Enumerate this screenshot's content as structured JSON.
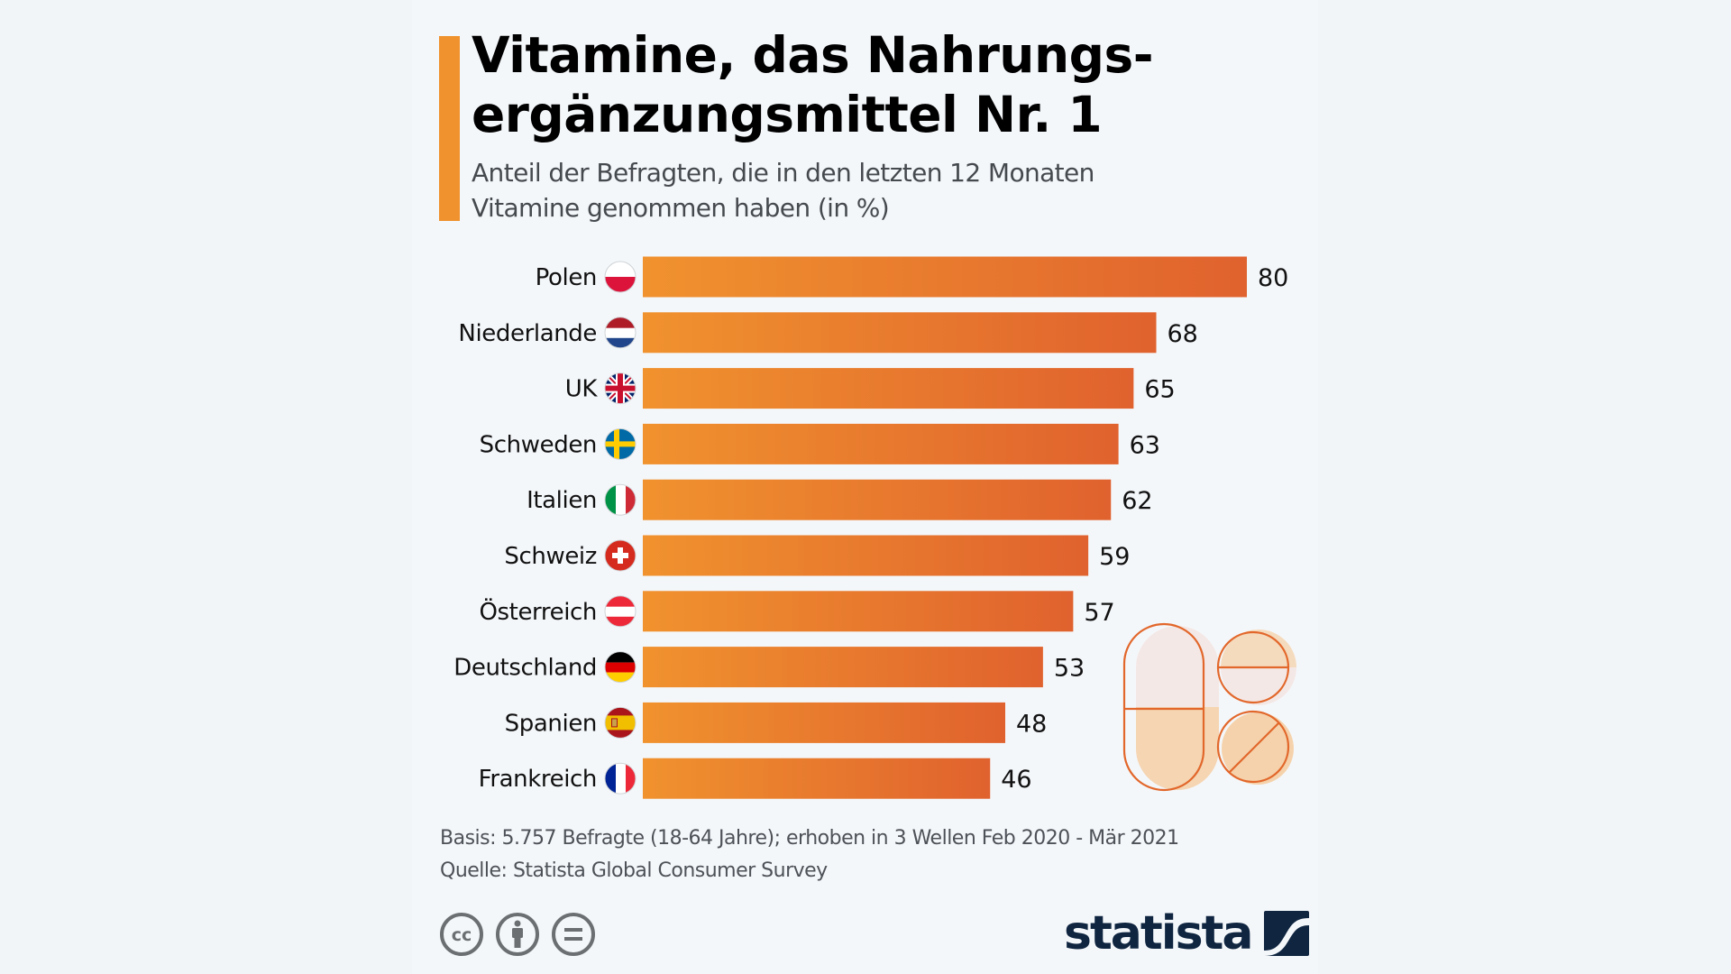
{
  "header": {
    "title_lines": [
      "Vitamine, das Nahrungs-",
      "ergänzungsmittel Nr. 1"
    ],
    "subtitle_lines": [
      "Anteil der Befragten, die in den letzten 12 Monaten",
      "Vitamine genommen haben (in %)"
    ]
  },
  "colors": {
    "accent": "#f0922e",
    "bar_start": "#f0922e",
    "bar_end": "#e0622e",
    "text": "#000000",
    "brand": "#0f2540"
  },
  "chart_data": {
    "type": "bar",
    "orientation": "horizontal",
    "title": "Vitamine, das Nahrungsergänzungsmittel Nr. 1",
    "subtitle": "Anteil der Befragten, die in den letzten 12 Monaten Vitamine genommen haben (in %)",
    "xlabel": "",
    "ylabel": "",
    "xlim": [
      0,
      80
    ],
    "grid": false,
    "legend": "none",
    "categories": [
      "Polen",
      "Niederlande",
      "UK",
      "Schweden",
      "Italien",
      "Schweiz",
      "Österreich",
      "Deutschland",
      "Spanien",
      "Frankreich"
    ],
    "flags": [
      "poland-flag",
      "netherlands-flag",
      "uk-flag",
      "sweden-flag",
      "italy-flag",
      "switzerland-flag",
      "austria-flag",
      "germany-flag",
      "spain-flag",
      "france-flag"
    ],
    "values": [
      80,
      68,
      65,
      63,
      62,
      59,
      57,
      53,
      48,
      46
    ],
    "unit": "%"
  },
  "footer": {
    "basis": "Basis: 5.757 Befragte (18-64 Jahre); erhoben in 3 Wellen Feb 2020 - Mär 2021",
    "source": "Quelle: Statista Global Consumer Survey",
    "license_icons": [
      "creative-commons-icon",
      "attribution-icon",
      "no-derivatives-icon"
    ],
    "brand": "statista"
  }
}
